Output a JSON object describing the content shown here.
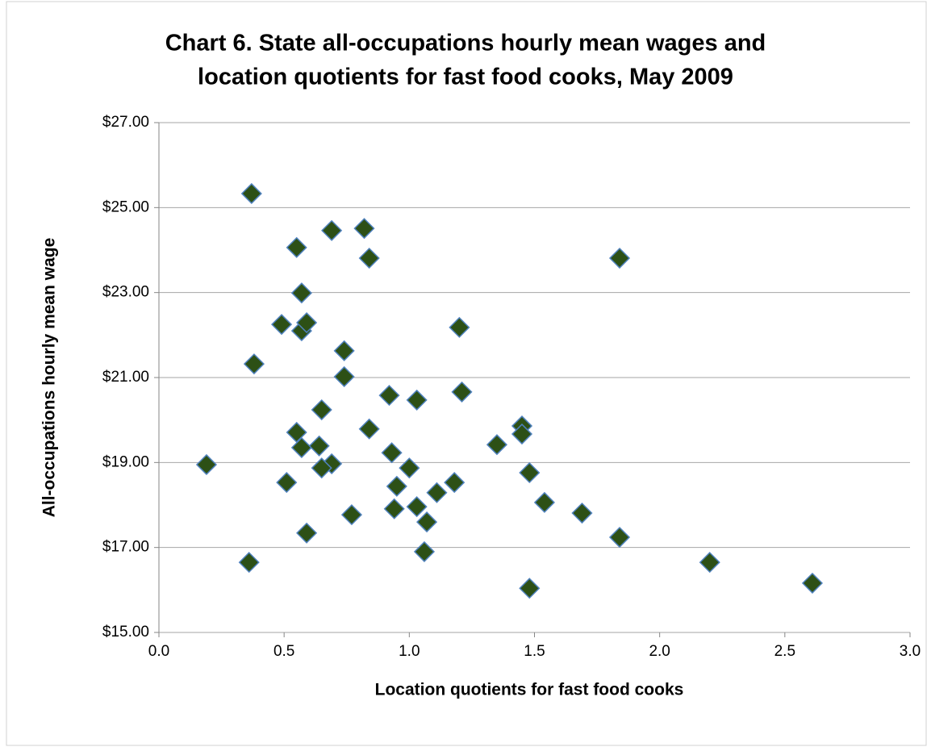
{
  "chart_data": {
    "type": "scatter",
    "title": [
      "Chart 6. State all-occupations hourly mean wages and",
      "location quotients for fast food cooks, May 2009"
    ],
    "x_label": "Location quotients for fast food cooks",
    "y_label": "All-occupations hourly mean wage",
    "xlim": [
      0,
      3
    ],
    "ylim": [
      15,
      27
    ],
    "xticks": [
      {
        "value": 0,
        "label": "0.0"
      },
      {
        "value": 0.5,
        "label": "0.5"
      },
      {
        "value": 1,
        "label": "1.0"
      },
      {
        "value": 1.5,
        "label": "1.5"
      },
      {
        "value": 2,
        "label": "2.0"
      },
      {
        "value": 2.5,
        "label": "2.5"
      },
      {
        "value": 3,
        "label": "3.0"
      }
    ],
    "yticks": [
      {
        "value": 15,
        "label": "$15.00"
      },
      {
        "value": 17,
        "label": "$17.00"
      },
      {
        "value": 19,
        "label": "$19.00"
      },
      {
        "value": 21,
        "label": "$21.00"
      },
      {
        "value": 23,
        "label": "$23.00"
      },
      {
        "value": 25,
        "label": "$25.00"
      },
      {
        "value": 27,
        "label": "$27.00"
      }
    ],
    "grid": true,
    "color": "#2d5016",
    "edge_color": "#4f81bd",
    "x": [
      0.37,
      0.69,
      0.82,
      0.55,
      0.84,
      1.84,
      0.57,
      0.49,
      0.57,
      0.59,
      1.2,
      0.74,
      0.38,
      0.74,
      0.92,
      1.03,
      1.21,
      0.65,
      0.84,
      0.55,
      1.35,
      1.45,
      1.45,
      0.57,
      0.64,
      0.93,
      0.19,
      0.69,
      0.65,
      1.0,
      0.95,
      1.48,
      0.51,
      1.18,
      1.11,
      1.54,
      1.69,
      0.77,
      0.94,
      1.03,
      1.07,
      0.59,
      1.84,
      0.36,
      1.06,
      2.2,
      1.48,
      2.61
    ],
    "y": [
      25.33,
      24.46,
      24.51,
      24.06,
      23.81,
      23.81,
      22.99,
      22.25,
      22.1,
      22.29,
      22.18,
      21.63,
      21.32,
      21.02,
      20.58,
      20.47,
      20.66,
      20.24,
      19.79,
      19.71,
      19.42,
      19.86,
      19.67,
      19.35,
      19.39,
      19.23,
      18.95,
      18.97,
      18.87,
      18.87,
      18.44,
      18.76,
      18.53,
      18.53,
      18.29,
      18.06,
      17.81,
      17.77,
      17.91,
      17.96,
      17.6,
      17.34,
      17.24,
      16.65,
      16.9,
      16.65,
      16.04,
      16.16
    ]
  }
}
